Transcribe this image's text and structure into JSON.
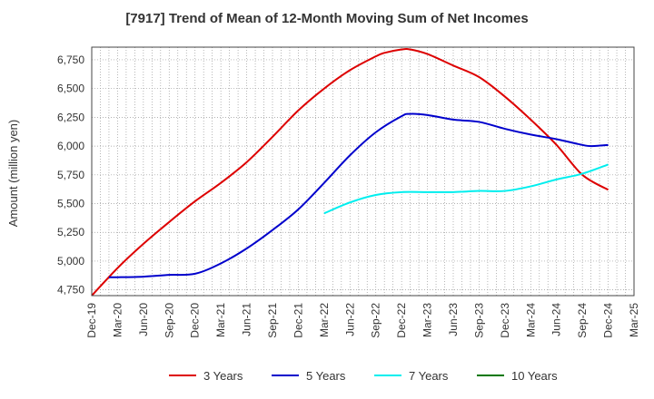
{
  "chart_data": {
    "type": "line",
    "title": "[7917]  Trend of Mean of 12-Month Moving Sum of Net Incomes",
    "xlabel": "",
    "ylabel": "Amount (million yen)",
    "x_ticks": [
      "Dec-19",
      "Mar-20",
      "Jun-20",
      "Sep-20",
      "Dec-20",
      "Mar-21",
      "Jun-21",
      "Sep-21",
      "Dec-21",
      "Mar-22",
      "Jun-22",
      "Sep-22",
      "Dec-22",
      "Mar-23",
      "Jun-23",
      "Sep-23",
      "Dec-23",
      "Mar-24",
      "Jun-24",
      "Sep-24",
      "Dec-24",
      "Mar-25"
    ],
    "y_ticks": [
      4750,
      5000,
      5250,
      5500,
      5750,
      6000,
      6250,
      6500,
      6750
    ],
    "ylim": [
      4700,
      6860
    ],
    "grid": true,
    "legend_position": "bottom",
    "series": [
      {
        "name": "3 Years",
        "color": "#dd0000",
        "x": [
          "Dec-19",
          "Mar-20",
          "Jun-20",
          "Sep-20",
          "Dec-20",
          "Mar-21",
          "Jun-21",
          "Sep-21",
          "Dec-21",
          "Mar-22",
          "Jun-22",
          "Sep-22",
          "Oct-22",
          "Dec-22",
          "Jan-23",
          "Mar-23",
          "Jun-23",
          "Sep-23",
          "Dec-23",
          "Mar-24",
          "Jun-24",
          "Sep-24",
          "Dec-24"
        ],
        "values": [
          4700,
          4940,
          5150,
          5340,
          5520,
          5680,
          5860,
          6080,
          6310,
          6500,
          6660,
          6780,
          6810,
          6840,
          6840,
          6800,
          6700,
          6600,
          6430,
          6230,
          6010,
          5750,
          5620
        ]
      },
      {
        "name": "5 Years",
        "color": "#0000cc",
        "x": [
          "Feb-20",
          "Mar-20",
          "Jun-20",
          "Sep-20",
          "Dec-20",
          "Mar-21",
          "Jun-21",
          "Sep-21",
          "Dec-21",
          "Mar-22",
          "Jun-22",
          "Sep-22",
          "Dec-22",
          "Jan-23",
          "Mar-23",
          "Jun-23",
          "Sep-23",
          "Dec-23",
          "Mar-24",
          "Jun-24",
          "Sep-24",
          "Oct-24",
          "Dec-24"
        ],
        "values": [
          4860,
          4860,
          4865,
          4880,
          4890,
          4980,
          5110,
          5270,
          5450,
          5680,
          5920,
          6120,
          6260,
          6280,
          6270,
          6230,
          6210,
          6150,
          6100,
          6060,
          6010,
          6000,
          6010
        ]
      },
      {
        "name": "7 Years",
        "color": "#00eeee",
        "x": [
          "Mar-22",
          "Jun-22",
          "Sep-22",
          "Dec-22",
          "Mar-23",
          "Jun-23",
          "Sep-23",
          "Dec-23",
          "Mar-24",
          "Jun-24",
          "Sep-24",
          "Dec-24"
        ],
        "values": [
          5415,
          5510,
          5575,
          5600,
          5600,
          5600,
          5610,
          5610,
          5650,
          5710,
          5760,
          5840
        ]
      },
      {
        "name": "10 Years",
        "color": "#007700",
        "x": [],
        "values": []
      }
    ]
  }
}
